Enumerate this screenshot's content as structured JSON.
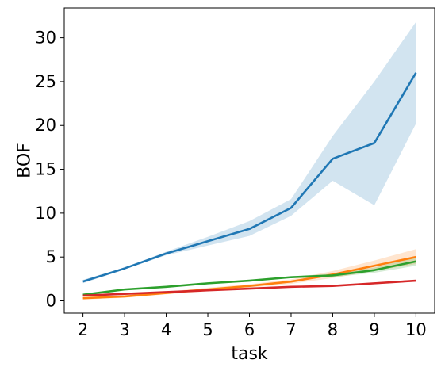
{
  "chart_data": {
    "type": "line",
    "title": "",
    "xlabel": "task",
    "ylabel": "BOF",
    "x": [
      2,
      3,
      4,
      5,
      6,
      7,
      8,
      9,
      10
    ],
    "xticks": [
      2,
      3,
      4,
      5,
      6,
      7,
      8,
      9,
      10
    ],
    "yticks": [
      0,
      5,
      10,
      15,
      20,
      25,
      30
    ],
    "xlim": [
      1.55,
      10.45
    ],
    "ylim": [
      -1.4,
      33.4
    ],
    "grid": false,
    "legend": "none",
    "series": [
      {
        "color": "#1f77b4",
        "values": [
          2.2,
          3.7,
          5.4,
          6.8,
          8.2,
          10.6,
          16.2,
          18.0,
          26.0
        ],
        "lower": [
          2.0,
          3.6,
          5.2,
          6.3,
          7.4,
          9.7,
          13.7,
          10.9,
          20.2
        ],
        "upper": [
          2.4,
          3.8,
          5.6,
          7.3,
          9.1,
          11.6,
          18.8,
          25.0,
          31.8
        ]
      },
      {
        "color": "#ff7f0e",
        "values": [
          0.3,
          0.5,
          0.9,
          1.3,
          1.7,
          2.2,
          3.0,
          4.0,
          5.0
        ],
        "lower": [
          0.15,
          0.35,
          0.75,
          1.1,
          1.5,
          1.95,
          2.6,
          3.4,
          4.2
        ],
        "upper": [
          0.45,
          0.65,
          1.05,
          1.5,
          1.9,
          2.45,
          3.4,
          4.6,
          5.9
        ]
      },
      {
        "color": "#2ca02c",
        "values": [
          0.7,
          1.3,
          1.6,
          2.0,
          2.3,
          2.7,
          2.9,
          3.5,
          4.5
        ],
        "lower": [
          0.6,
          1.2,
          1.5,
          1.9,
          2.2,
          2.6,
          2.7,
          3.2,
          4.0
        ],
        "upper": [
          0.8,
          1.4,
          1.7,
          2.1,
          2.4,
          2.8,
          3.1,
          3.8,
          5.0
        ]
      },
      {
        "color": "#d62728",
        "values": [
          0.6,
          0.8,
          1.0,
          1.2,
          1.4,
          1.6,
          1.7,
          2.0,
          2.3
        ],
        "lower": [
          0.55,
          0.75,
          0.95,
          1.15,
          1.35,
          1.55,
          1.6,
          1.9,
          2.2
        ],
        "upper": [
          0.65,
          0.85,
          1.05,
          1.25,
          1.45,
          1.65,
          1.8,
          2.1,
          2.4
        ]
      }
    ]
  }
}
